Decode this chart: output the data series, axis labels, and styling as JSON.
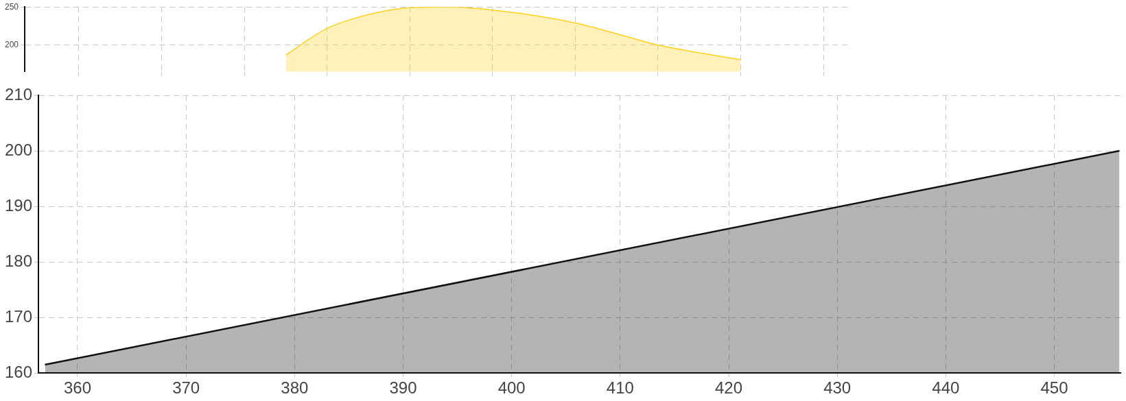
{
  "chart_data": [
    {
      "type": "area",
      "categories": [
        null,
        null,
        null,
        null,
        null,
        null,
        null,
        null,
        null,
        null,
        null,
        null,
        null,
        null,
        null,
        null,
        null,
        null,
        null
      ],
      "values": [
        null,
        null,
        null,
        null,
        null,
        187,
        222,
        240,
        249,
        250,
        246,
        239,
        229,
        215,
        200,
        190,
        181,
        null,
        null
      ],
      "color": "#ffd21f",
      "ylim": [
        165,
        250
      ],
      "yticks": [
        200,
        250
      ],
      "grid": true,
      "tick_labels": "y"
    },
    {
      "type": "area",
      "x": [
        357,
        456
      ],
      "values": [
        161.5,
        200
      ],
      "color": "#111111",
      "xlim": [
        356.4,
        456.1
      ],
      "xticks": [
        360,
        370,
        380,
        390,
        400,
        410,
        420,
        430,
        440,
        450
      ],
      "ylim": [
        160,
        210
      ],
      "yticks": [
        160,
        170,
        180,
        190,
        200,
        210
      ],
      "grid": true
    }
  ]
}
